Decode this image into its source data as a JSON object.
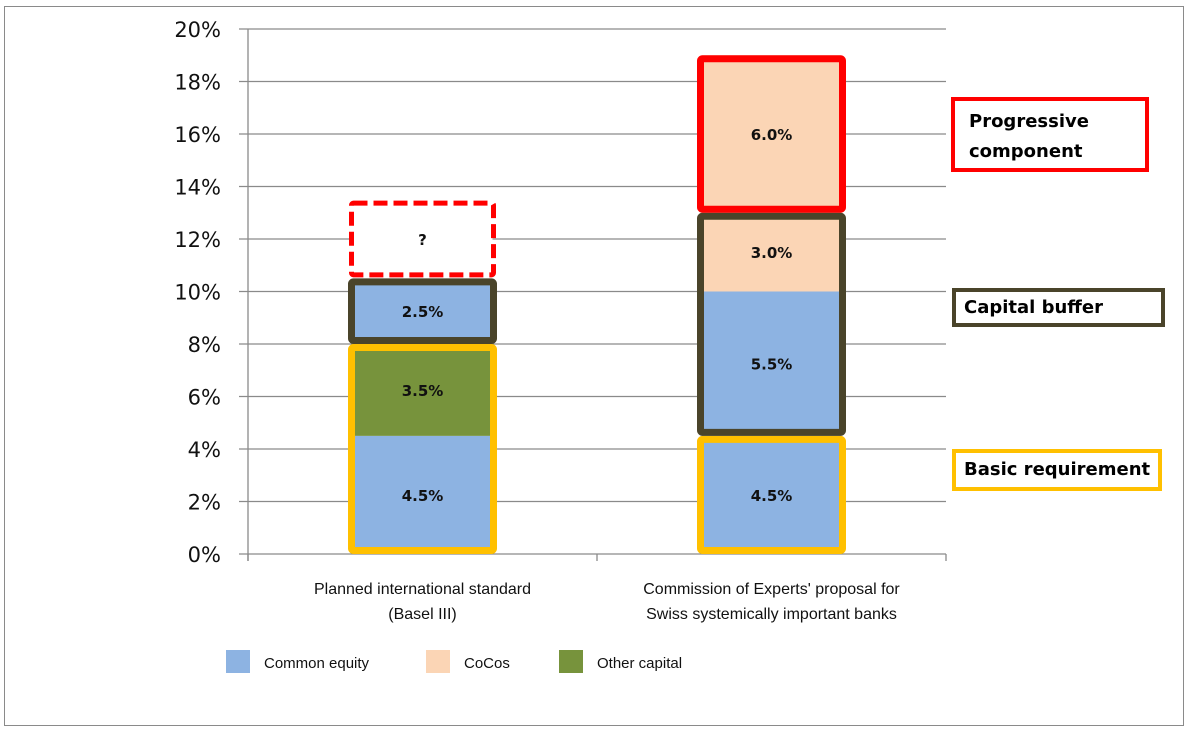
{
  "chart_data": {
    "type": "bar",
    "stacked": true,
    "title": "",
    "xlabel": "",
    "ylabel": "",
    "ylim": [
      0,
      20
    ],
    "yticks": [
      "0%",
      "2%",
      "4%",
      "6%",
      "8%",
      "10%",
      "12%",
      "14%",
      "16%",
      "18%",
      "20%"
    ],
    "grid": true,
    "categories": [
      "Planned international standard\n(Basel III)",
      "Commission of Experts' proposal for\nSwiss systemically important banks"
    ],
    "category_lines": [
      [
        "Planned international standard",
        "(Basel III)"
      ],
      [
        "Commission of Experts' proposal for",
        "Swiss systemically important banks"
      ]
    ],
    "series_colors": {
      "Common equity": "#8db3e2",
      "CoCos": "#fbd5b5",
      "Other capital": "#77933c"
    },
    "stacks": [
      {
        "category": "Planned international standard (Basel III)",
        "segments": [
          {
            "series": "Common equity",
            "value": 4.5,
            "label": "4.5%"
          },
          {
            "series": "Other capital",
            "value": 3.5,
            "label": "3.5%"
          },
          {
            "series": "Common equity",
            "value": 2.5,
            "label": "2.5%"
          },
          {
            "series": "unknown",
            "value": 3.0,
            "label": "?",
            "dashed": true
          }
        ]
      },
      {
        "category": "Commission of Experts' proposal for Swiss systemically important banks",
        "segments": [
          {
            "series": "Common equity",
            "value": 4.5,
            "label": "4.5%"
          },
          {
            "series": "Common equity",
            "value": 5.5,
            "label": "5.5%"
          },
          {
            "series": "CoCos",
            "value": 3.0,
            "label": "3.0%"
          },
          {
            "series": "CoCos",
            "value": 6.0,
            "label": "6.0%"
          }
        ]
      }
    ],
    "groups": [
      {
        "name": "Basic requirement",
        "color": "#ffc000",
        "ranges": [
          {
            "category": 0,
            "from": 0,
            "to": 8
          },
          {
            "category": 1,
            "from": 0,
            "to": 4.5
          }
        ]
      },
      {
        "name": "Capital buffer",
        "color": "#4a442a",
        "ranges": [
          {
            "category": 0,
            "from": 8,
            "to": 10.5
          },
          {
            "category": 1,
            "from": 4.5,
            "to": 13
          }
        ]
      },
      {
        "name": "Progressive component",
        "color": "#ff0000",
        "ranges": [
          {
            "category": 0,
            "from": 10.5,
            "to": 13.5,
            "dashed": true
          },
          {
            "category": 1,
            "from": 13,
            "to": 19
          }
        ]
      }
    ],
    "legend": {
      "position": "bottom",
      "entries": [
        {
          "label": "Common equity",
          "color": "#8db3e2"
        },
        {
          "label": "CoCos",
          "color": "#fbd5b5"
        },
        {
          "label": "Other capital",
          "color": "#77933c"
        }
      ]
    },
    "annotations": [
      {
        "text": "Progressive component",
        "lines": [
          "Progressive",
          "component"
        ],
        "border_color": "#ff0000"
      },
      {
        "text": "Capital buffer",
        "lines": [
          "Capital buffer"
        ],
        "border_color": "#4a442a"
      },
      {
        "text": "Basic requirement",
        "lines": [
          "Basic requirement"
        ],
        "border_color": "#ffc000"
      }
    ]
  }
}
